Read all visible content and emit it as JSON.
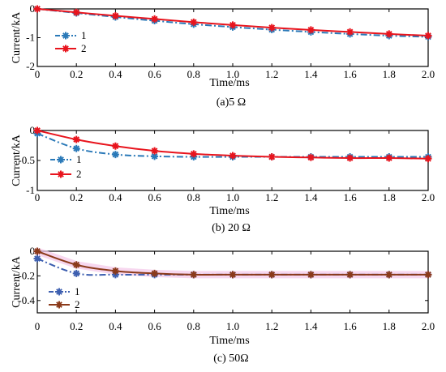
{
  "chart_data": [
    {
      "type": "line",
      "caption": "(a)5 Ω",
      "xlabel": "Time/ms",
      "ylabel": "Current/kA",
      "xlim": [
        0,
        2.0
      ],
      "ylim": [
        -2,
        0
      ],
      "xticks": [
        "0",
        "0.2",
        "0.4",
        "0.6",
        "0.8",
        "1.0",
        "1.2",
        "1.4",
        "1.6",
        "1.8",
        "2.0"
      ],
      "yticks": [
        "0",
        "-1",
        "-2"
      ],
      "legend": "top-left",
      "x": [
        0,
        0.2,
        0.4,
        0.6,
        0.8,
        1.0,
        1.2,
        1.4,
        1.6,
        1.8,
        2.0
      ],
      "series": [
        {
          "name": "1",
          "color": "#2a79b8",
          "dash": "dashdot",
          "values": [
            0,
            -0.14,
            -0.28,
            -0.41,
            -0.53,
            -0.63,
            -0.72,
            -0.8,
            -0.87,
            -0.93,
            -0.97
          ]
        },
        {
          "name": "2",
          "color": "#e8141d",
          "dash": "solid",
          "values": [
            0,
            -0.12,
            -0.24,
            -0.35,
            -0.46,
            -0.56,
            -0.65,
            -0.73,
            -0.8,
            -0.87,
            -0.93
          ]
        }
      ]
    },
    {
      "type": "line",
      "caption": "(b) 20 Ω",
      "xlabel": "Time/ms",
      "ylabel": "Current/kA",
      "xlim": [
        0,
        2.0
      ],
      "ylim": [
        -1,
        0
      ],
      "xticks": [
        "0",
        "0.2",
        "0.4",
        "0.6",
        "0.8",
        "1.0",
        "1.2",
        "1.4",
        "1.6",
        "1.8",
        "2.0"
      ],
      "yticks": [
        "0",
        "-0.5",
        "-1"
      ],
      "legend": "top-left",
      "x": [
        0,
        0.2,
        0.4,
        0.6,
        0.8,
        1.0,
        1.2,
        1.4,
        1.6,
        1.8,
        2.0
      ],
      "series": [
        {
          "name": "1",
          "color": "#2a79b8",
          "dash": "dashdot",
          "values": [
            -0.05,
            -0.3,
            -0.4,
            -0.43,
            -0.44,
            -0.44,
            -0.44,
            -0.44,
            -0.44,
            -0.44,
            -0.44
          ]
        },
        {
          "name": "2",
          "color": "#e8141d",
          "dash": "solid",
          "values": [
            0,
            -0.15,
            -0.26,
            -0.34,
            -0.39,
            -0.42,
            -0.44,
            -0.45,
            -0.46,
            -0.46,
            -0.47
          ]
        }
      ]
    },
    {
      "type": "line",
      "caption": "(c) 50Ω",
      "xlabel": "Time/ms",
      "ylabel": "Current/kA",
      "xlim": [
        0,
        2.0
      ],
      "ylim": [
        -0.5,
        0
      ],
      "xticks": [
        "0",
        "0.2",
        "0.4",
        "0.6",
        "0.8",
        "1.0",
        "1.2",
        "1.4",
        "1.6",
        "1.8",
        "2.0"
      ],
      "yticks": [
        "0",
        "-0.2",
        "-0.4"
      ],
      "legend": "bottom-left",
      "x": [
        0,
        0.2,
        0.4,
        0.6,
        0.8,
        1.0,
        1.2,
        1.4,
        1.6,
        1.8,
        2.0
      ],
      "series": [
        {
          "name": "1",
          "color": "#3d5fb0",
          "dash": "dashdot",
          "values": [
            -0.06,
            -0.18,
            -0.19,
            -0.19,
            -0.19,
            -0.19,
            -0.19,
            -0.19,
            -0.19,
            -0.19,
            -0.19
          ]
        },
        {
          "name": "2",
          "color": "#8b3a1a",
          "dash": "solid",
          "values": [
            0,
            -0.11,
            -0.16,
            -0.18,
            -0.19,
            -0.19,
            -0.19,
            -0.19,
            -0.19,
            -0.19,
            -0.19
          ]
        }
      ]
    }
  ]
}
